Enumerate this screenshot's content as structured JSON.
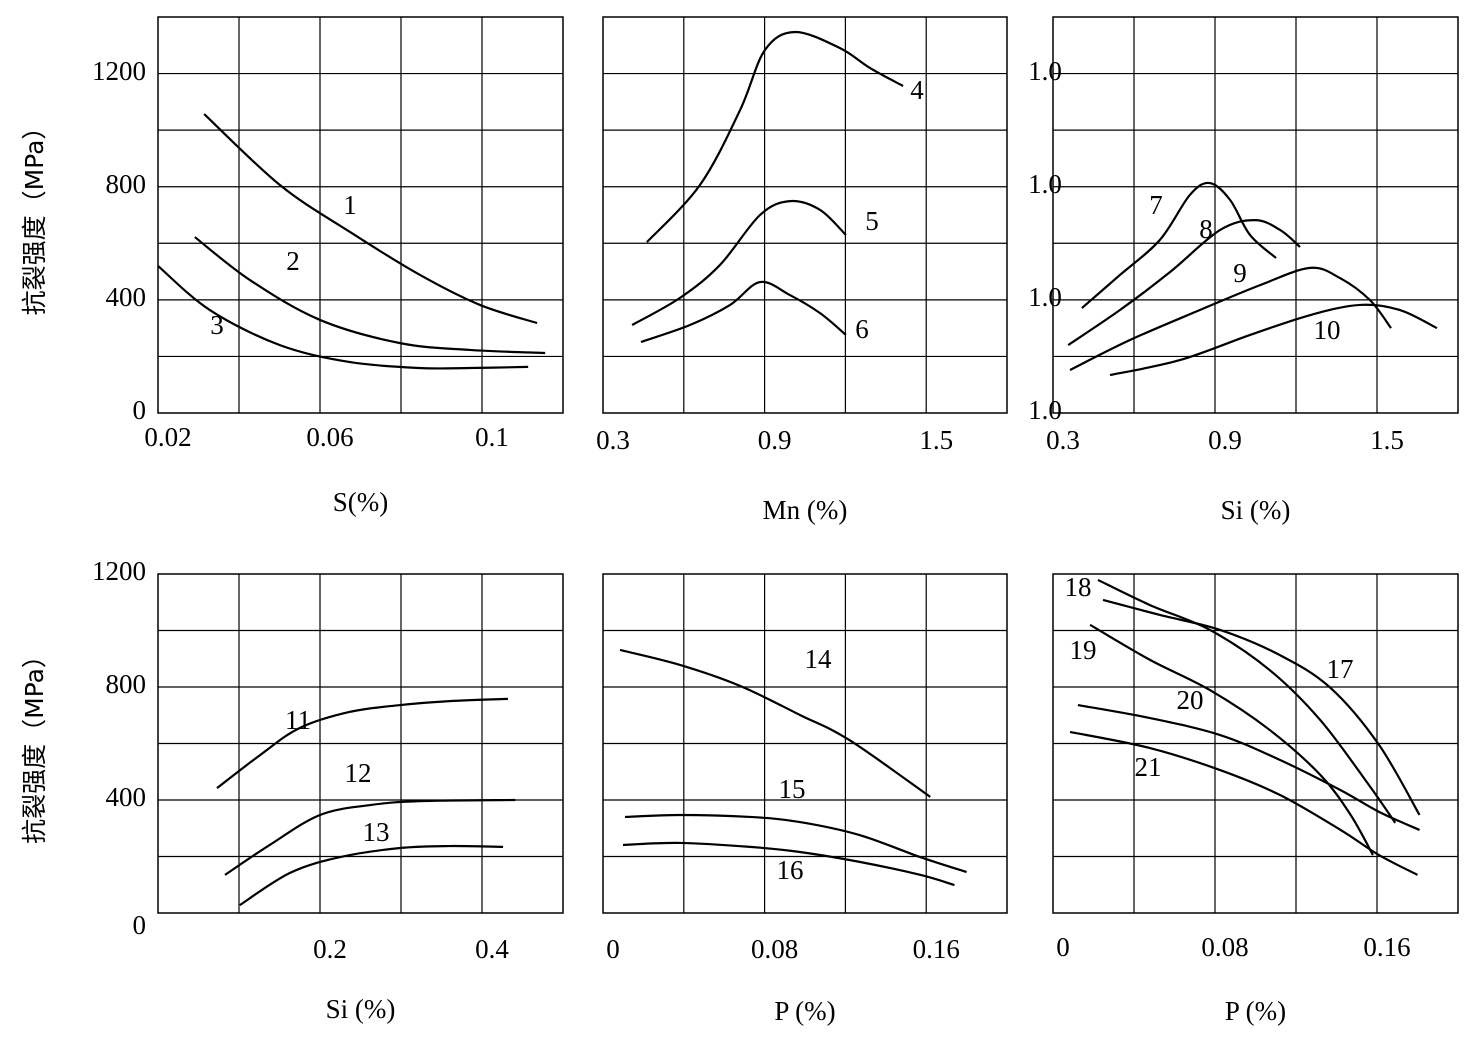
{
  "chart_data": [
    {
      "type": "line",
      "ylabel": "抗裂强度（MPa）",
      "xlabel": "S(%)",
      "xlim": [
        0.02,
        0.12
      ],
      "xticks": [
        0.02,
        0.06,
        0.1
      ],
      "ylim": [
        0,
        1400
      ],
      "yticks": [
        0,
        400,
        800,
        1200
      ],
      "grid": true,
      "series": [
        {
          "name": "1",
          "color": "#000000",
          "x": [
            0.0314,
            0.0501,
            0.0674,
            0.0847,
            0.0995,
            0.1136
          ],
          "values": [
            1057,
            806,
            640,
            488,
            382,
            318
          ]
        },
        {
          "name": "2",
          "color": "#000000",
          "x": [
            0.0291,
            0.0427,
            0.06,
            0.0798,
            0.097,
            0.1156
          ],
          "values": [
            622,
            470,
            329,
            247,
            223,
            212
          ]
        },
        {
          "name": "3",
          "color": "#000000",
          "x": [
            0.02,
            0.0328,
            0.0501,
            0.0674,
            0.0847,
            0.097,
            0.1114
          ],
          "values": [
            520,
            364,
            240,
            180,
            159,
            159,
            163
          ]
        }
      ]
    },
    {
      "type": "line",
      "xlabel": "Mn (%)",
      "xlim": [
        0.3,
        1.8
      ],
      "xticks": [
        0.3,
        0.9,
        1.5
      ],
      "ylim": [
        0,
        1400
      ],
      "yticks": [],
      "grid": true,
      "series": [
        {
          "name": "4",
          "color": "#000000",
          "x": [
            0.463,
            0.66,
            0.809,
            0.901,
            1.013,
            1.18,
            1.291,
            1.414
          ],
          "values": [
            604,
            806,
            1071,
            1283,
            1347,
            1290,
            1220,
            1156
          ]
        },
        {
          "name": "5",
          "color": "#000000",
          "x": [
            0.408,
            0.586,
            0.734,
            0.883,
            0.994,
            1.106,
            1.202
          ],
          "values": [
            311,
            407,
            523,
            700,
            749,
            718,
            629
          ]
        },
        {
          "name": "6",
          "color": "#000000",
          "x": [
            0.441,
            0.623,
            0.772,
            0.883,
            0.994,
            1.106,
            1.202
          ],
          "values": [
            251,
            311,
            382,
            463,
            417,
            353,
            276
          ]
        }
      ]
    },
    {
      "type": "line",
      "xlabel": "Si (%)",
      "xlim": [
        0.3,
        1.8
      ],
      "xticks": [
        0.3,
        0.9,
        1.5
      ],
      "ylim": [
        0,
        1400
      ],
      "yticks": [
        {
          "value": 0,
          "label": "1.0"
        },
        {
          "value": 400,
          "label": "1.0"
        },
        {
          "value": 800,
          "label": "1.0"
        },
        {
          "value": 1200,
          "label": "1.0"
        }
      ],
      "grid": true,
      "series": [
        {
          "name": "7",
          "color": "#000000",
          "x": [
            0.407,
            0.548,
            0.696,
            0.807,
            0.881,
            0.956,
            1.03,
            1.126
          ],
          "values": [
            371,
            488,
            612,
            771,
            813,
            753,
            629,
            548
          ]
        },
        {
          "name": "8",
          "color": "#000000",
          "x": [
            0.356,
            0.548,
            0.733,
            0.919,
            1.048,
            1.141,
            1.215
          ],
          "values": [
            240,
            364,
            498,
            647,
            682,
            647,
            587
          ]
        },
        {
          "name": "9",
          "color": "#000000",
          "x": [
            0.363,
            0.585,
            0.844,
            1.067,
            1.252,
            1.363,
            1.474,
            1.552
          ],
          "values": [
            152,
            258,
            364,
            452,
            513,
            477,
            399,
            300
          ]
        },
        {
          "name": "10",
          "color": "#000000",
          "x": [
            0.511,
            0.77,
            1.03,
            1.252,
            1.437,
            1.585,
            1.722
          ],
          "values": [
            134,
            187,
            276,
            346,
            382,
            364,
            300
          ]
        }
      ]
    },
    {
      "type": "line",
      "ylabel": "抗裂强度（MPa）",
      "xlabel": "Si (%)",
      "xlim": [
        0,
        0.5
      ],
      "xticks": [
        0.2,
        0.4
      ],
      "ylim": [
        0,
        1200
      ],
      "yticks": [
        0,
        400,
        800,
        1200
      ],
      "grid": true,
      "series": [
        {
          "name": "11",
          "color": "#000000",
          "x": [
            0.0728,
            0.126,
            0.175,
            0.237,
            0.299,
            0.36,
            0.432
          ],
          "values": [
            442,
            559,
            655,
            712,
            736,
            750,
            758
          ]
        },
        {
          "name": "12",
          "color": "#000000",
          "x": [
            0.0827,
            0.138,
            0.2,
            0.262,
            0.323,
            0.441
          ],
          "values": [
            135,
            241,
            347,
            382,
            396,
            400
          ]
        },
        {
          "name": "13",
          "color": "#000000",
          "x": [
            0.101,
            0.163,
            0.225,
            0.299,
            0.36,
            0.426
          ],
          "values": [
            28,
            142,
            198,
            230,
            237,
            234
          ]
        }
      ]
    },
    {
      "type": "line",
      "xlabel": "P (%)",
      "xlim": [
        0,
        0.2
      ],
      "xticks": [
        0,
        0.08,
        0.16
      ],
      "ylim": [
        0,
        1200
      ],
      "yticks": [],
      "grid": true,
      "series": [
        {
          "name": "14",
          "color": "#000000",
          "x": [
            0.0084,
            0.0381,
            0.0678,
            0.0975,
            0.122,
            0.162
          ],
          "values": [
            931,
            878,
            804,
            701,
            612,
            411
          ]
        },
        {
          "name": "15",
          "color": "#000000",
          "x": [
            0.0109,
            0.0381,
            0.0728,
            0.0975,
            0.127,
            0.157,
            0.18
          ],
          "values": [
            340,
            347,
            340,
            322,
            276,
            198,
            145
          ]
        },
        {
          "name": "16",
          "color": "#000000",
          "x": [
            0.0099,
            0.0381,
            0.0728,
            0.0975,
            0.127,
            0.157,
            0.174
          ],
          "values": [
            241,
            248,
            234,
            216,
            181,
            135,
            99
          ]
        }
      ]
    },
    {
      "type": "line",
      "xlabel": "P (%)",
      "xlim": [
        0,
        0.2
      ],
      "xticks": [
        0,
        0.08,
        0.16
      ],
      "ylim": [
        0,
        1200
      ],
      "yticks": [],
      "grid": true,
      "series": [
        {
          "name": "17",
          "color": "#000000",
          "x": [
            0.0247,
            0.0528,
            0.0825,
            0.112,
            0.137,
            0.161,
            0.181
          ],
          "values": [
            1108,
            1055,
            1002,
            913,
            797,
            595,
            347
          ]
        },
        {
          "name": "18",
          "color": "#000000",
          "x": [
            0.0222,
            0.0479,
            0.0775,
            0.107,
            0.132,
            0.156,
            0.169
          ],
          "values": [
            1179,
            1090,
            1002,
            860,
            683,
            453,
            319
          ]
        },
        {
          "name": "19",
          "color": "#000000",
          "x": [
            0.0183,
            0.0479,
            0.0775,
            0.107,
            0.132,
            0.147,
            0.158
          ],
          "values": [
            1020,
            896,
            789,
            648,
            489,
            347,
            205
          ]
        },
        {
          "name": "20",
          "color": "#000000",
          "x": [
            0.0123,
            0.0479,
            0.0825,
            0.112,
            0.142,
            0.161,
            0.181
          ],
          "values": [
            736,
            690,
            630,
            542,
            435,
            358,
            294
          ]
        },
        {
          "name": "21",
          "color": "#000000",
          "x": [
            0.0084,
            0.0479,
            0.0825,
            0.112,
            0.142,
            0.161,
            0.18
          ],
          "values": [
            641,
            584,
            506,
            418,
            294,
            205,
            135
          ]
        }
      ]
    }
  ]
}
